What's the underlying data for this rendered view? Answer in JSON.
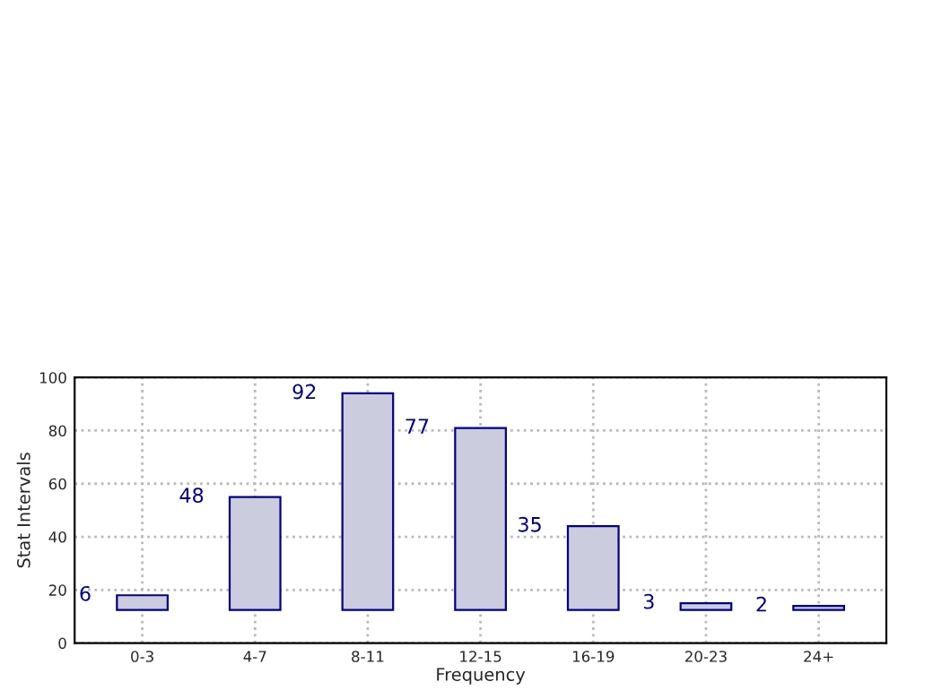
{
  "chart_data": {
    "type": "bar",
    "xlabel": "Frequency",
    "ylabel": "Stat Intervals",
    "categories": [
      "0-3",
      "4-7",
      "8-11",
      "12-15",
      "16-19",
      "20-23",
      "24+"
    ],
    "base": [
      12.5,
      12.5,
      12.5,
      12.5,
      12.5,
      12.5,
      12.5
    ],
    "values": [
      5.5,
      42.5,
      81.5,
      68.5,
      31.5,
      2.5,
      1.5
    ],
    "color": "#ccccdf",
    "ylim": [
      0,
      100
    ],
    "yticks": [
      0,
      20,
      40,
      60,
      80,
      100
    ],
    "grid": true,
    "annotations": [
      "6",
      "48",
      "92",
      "77",
      "35",
      "3",
      "2"
    ]
  }
}
